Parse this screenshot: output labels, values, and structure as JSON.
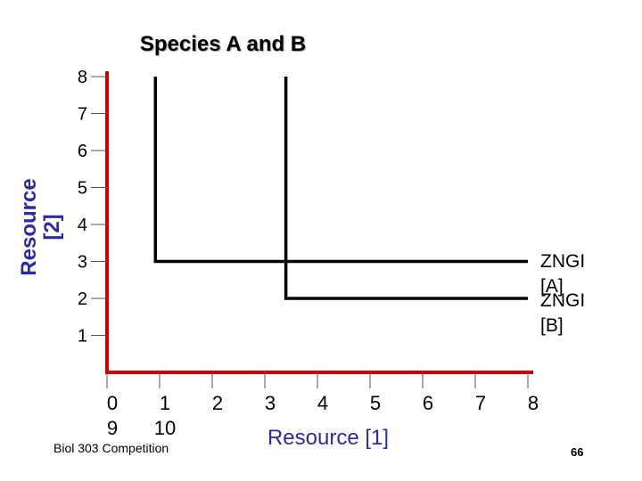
{
  "slide": {
    "footer": "Biol 303 Competition",
    "page_number": "66"
  },
  "chart_data": {
    "type": "line",
    "title": "Species A and B",
    "xlabel": "Resource [1]",
    "ylabel": "Resource\n[2]",
    "xlim": [
      0,
      8
    ],
    "ylim": [
      0,
      8
    ],
    "x_ticks": [
      0,
      1,
      2,
      3,
      4,
      5,
      6,
      7,
      8
    ],
    "x_tick_labels": [
      "0\n9",
      "1\n10",
      "2",
      "3",
      "4",
      "5",
      "6",
      "7",
      "8"
    ],
    "y_ticks": [
      1,
      2,
      3,
      4,
      5,
      6,
      7,
      8
    ],
    "y_tick_labels": [
      "1",
      "2",
      "3",
      "4",
      "5",
      "6",
      "7",
      "8"
    ],
    "axis_color": "#cc0000",
    "line_color": "#000000",
    "grid": false,
    "series": [
      {
        "name": "ZNGI [A]",
        "label_lines": [
          "ZNGI",
          "[A]"
        ],
        "points": [
          [
            0.92,
            8.0
          ],
          [
            0.92,
            3.0
          ],
          [
            8.0,
            3.0
          ]
        ]
      },
      {
        "name": "ZNGI [B]",
        "label_lines": [
          "ZNGI",
          "[B]"
        ],
        "points": [
          [
            3.4,
            8.0
          ],
          [
            3.4,
            2.0
          ],
          [
            8.0,
            2.0
          ]
        ]
      }
    ]
  }
}
